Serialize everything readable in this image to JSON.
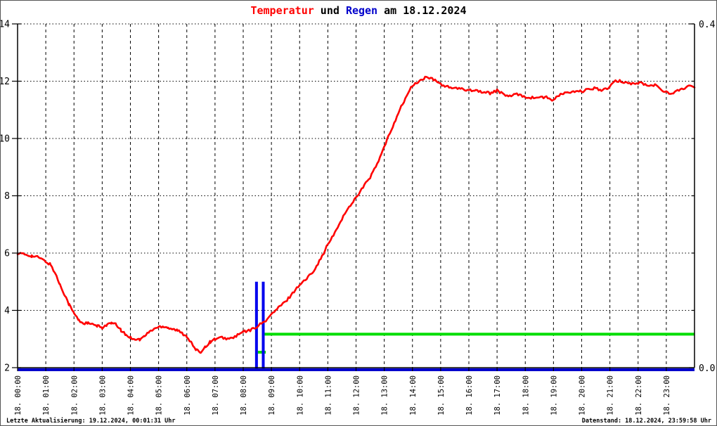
{
  "title": {
    "full": "Temperatur und Regen am 18.12.2024",
    "parts": [
      {
        "text": "Temperatur",
        "color": "#ff0000"
      },
      {
        "text": " und ",
        "color": "#000000"
      },
      {
        "text": "Regen",
        "color": "#0000cc"
      },
      {
        "text": " am 18.12.2024",
        "color": "#000000"
      }
    ]
  },
  "footer": {
    "left": "Letzte Aktualisierung: 19.12.2024, 00:01:31 Uhr",
    "right": "Datenstand: 18.12.2024, 23:59:58 Uhr"
  },
  "colors": {
    "temperature_line": "#ff0000",
    "rain_bar": "#0000ee",
    "rain_baseline": "#0000cc",
    "green_line": "#00dd00",
    "grid": "#000000"
  },
  "chart_data": {
    "type": "line",
    "title": "Temperatur und Regen am 18.12.2024",
    "grid": true,
    "legend": "none",
    "x_axis": {
      "unit": "hour",
      "range_hours": [
        0,
        24
      ],
      "tick_labels": [
        "18. 00:00",
        "18. 01:00",
        "18. 02:00",
        "18. 03:00",
        "18. 04:00",
        "18. 05:00",
        "18. 06:00",
        "18. 07:00",
        "18. 08:00",
        "18. 09:00",
        "18. 10:00",
        "18. 11:00",
        "18. 12:00",
        "18. 13:00",
        "18. 14:00",
        "18. 15:00",
        "18. 16:00",
        "18. 17:00",
        "18. 18:00",
        "18. 19:00",
        "18. 20:00",
        "18. 21:00",
        "18. 22:00",
        "18. 23:00"
      ]
    },
    "y_left": {
      "name": "Temperatur",
      "range": [
        2,
        14
      ],
      "tick_values": [
        2,
        4,
        6,
        8,
        10,
        12,
        14
      ],
      "tick_labels": [
        "2",
        "4",
        "6",
        "8",
        "10",
        "12",
        "14"
      ],
      "gridline_values": [
        4,
        6,
        8,
        10,
        12,
        14
      ]
    },
    "y_right": {
      "name": "Regen",
      "range": [
        0,
        0.4
      ],
      "top_label": "0.4",
      "bottom_label": "0.0"
    },
    "series": [
      {
        "name": "Temperatur",
        "kind": "line",
        "axis": "left",
        "color": "#ff0000",
        "x_hours": [
          0,
          0.25,
          0.5,
          0.75,
          1,
          1.17,
          1.33,
          1.5,
          1.67,
          1.83,
          2,
          2.17,
          2.33,
          2.5,
          2.67,
          2.83,
          3,
          3.17,
          3.33,
          3.5,
          3.67,
          3.83,
          4,
          4.17,
          4.33,
          4.5,
          4.67,
          4.83,
          5,
          5.17,
          5.33,
          5.5,
          5.67,
          5.83,
          6,
          6.17,
          6.33,
          6.5,
          6.67,
          6.83,
          7,
          7.25,
          7.5,
          7.75,
          8,
          8.25,
          8.5,
          8.75,
          9,
          9.25,
          9.5,
          9.75,
          10,
          10.25,
          10.5,
          10.75,
          11,
          11.25,
          11.5,
          11.75,
          12,
          12.25,
          12.5,
          12.75,
          13,
          13.25,
          13.5,
          13.75,
          14,
          14.25,
          14.5,
          14.75,
          15,
          15.25,
          15.5,
          15.75,
          16,
          16.25,
          16.5,
          16.75,
          17,
          17.25,
          17.5,
          17.75,
          18,
          18.25,
          18.5,
          18.75,
          19,
          19.25,
          19.5,
          19.75,
          20,
          20.25,
          20.5,
          20.7,
          21,
          21.2,
          21.4,
          21.6,
          21.9,
          22.1,
          22.4,
          22.6,
          22.8,
          23.1,
          23.3,
          23.55,
          23.8,
          24
        ],
        "values": [
          6.0,
          5.95,
          5.9,
          5.85,
          5.7,
          5.6,
          5.3,
          4.9,
          4.55,
          4.2,
          3.9,
          3.65,
          3.55,
          3.55,
          3.5,
          3.45,
          3.4,
          3.5,
          3.55,
          3.5,
          3.3,
          3.15,
          3.05,
          3.0,
          2.98,
          3.1,
          3.25,
          3.35,
          3.42,
          3.45,
          3.4,
          3.35,
          3.3,
          3.2,
          3.1,
          2.85,
          2.6,
          2.55,
          2.75,
          2.9,
          3.0,
          3.05,
          3.0,
          3.1,
          3.25,
          3.3,
          3.45,
          3.6,
          3.85,
          4.1,
          4.3,
          4.6,
          4.9,
          5.1,
          5.4,
          5.8,
          6.3,
          6.7,
          7.2,
          7.6,
          7.95,
          8.3,
          8.65,
          9.1,
          9.7,
          10.3,
          10.9,
          11.4,
          11.85,
          12.0,
          12.15,
          12.05,
          11.9,
          11.8,
          11.75,
          11.72,
          11.7,
          11.68,
          11.62,
          11.58,
          11.68,
          11.52,
          11.48,
          11.55,
          11.45,
          11.42,
          11.44,
          11.43,
          11.33,
          11.55,
          11.6,
          11.62,
          11.65,
          11.7,
          11.78,
          11.66,
          11.8,
          12.0,
          12.0,
          11.95,
          11.9,
          11.95,
          11.82,
          11.87,
          11.74,
          11.55,
          11.62,
          11.74,
          11.82,
          11.78
        ]
      },
      {
        "name": "Regen",
        "kind": "bars",
        "axis": "right",
        "color": "#0000ee",
        "baseline_value": 0,
        "bars": [
          {
            "x_hour": 8.47,
            "value": 0.1
          },
          {
            "x_hour": 8.71,
            "value": 0.1
          }
        ]
      },
      {
        "name": "gruen-linie-lang",
        "kind": "hline",
        "axis": "right",
        "color": "#00dd00",
        "x_start": 8.76,
        "x_end": 24,
        "value": 0.039
      },
      {
        "name": "gruen-linie-kurz",
        "kind": "hline",
        "axis": "right",
        "color": "#00dd00",
        "x_start": 8.52,
        "x_end": 8.8,
        "value": 0.018
      }
    ]
  }
}
